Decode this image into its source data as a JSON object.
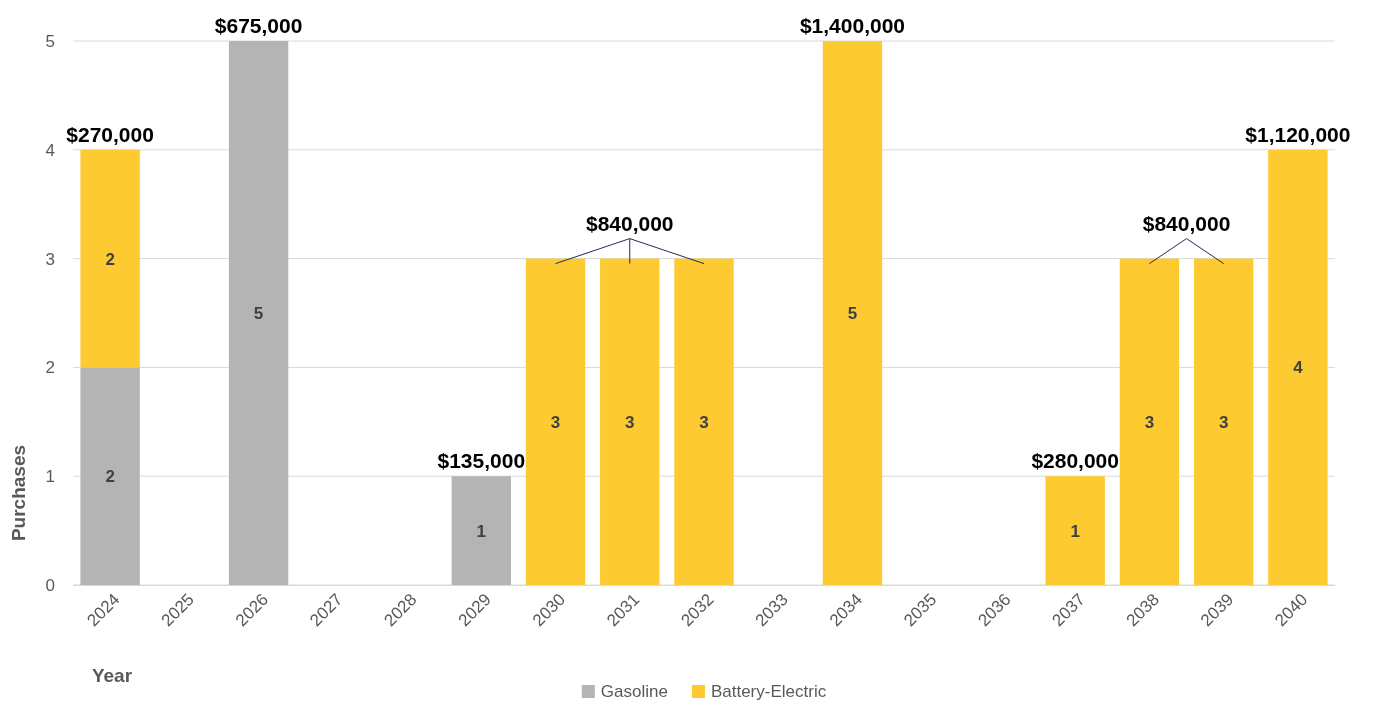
{
  "chart_data": {
    "type": "bar",
    "stacked": true,
    "categories": [
      "2024",
      "2025",
      "2026",
      "2027",
      "2028",
      "2029",
      "2030",
      "2031",
      "2032",
      "2033",
      "2034",
      "2035",
      "2036",
      "2037",
      "2038",
      "2039",
      "2040"
    ],
    "series": [
      {
        "name": "Gasoline",
        "color": "#b4b4b4",
        "values": [
          2,
          null,
          5,
          null,
          null,
          1,
          null,
          null,
          null,
          null,
          null,
          null,
          null,
          null,
          null,
          null,
          null
        ]
      },
      {
        "name": "Battery-Electric",
        "color": "#fdca31",
        "values": [
          2,
          null,
          null,
          null,
          null,
          null,
          3,
          3,
          3,
          null,
          5,
          null,
          null,
          1,
          3,
          3,
          4
        ]
      }
    ],
    "ylim": [
      0,
      5
    ],
    "yticks": [
      0,
      1,
      2,
      3,
      4,
      5
    ],
    "grid": "y",
    "legend": "bottom",
    "data_labels": true,
    "xlabel": "Year",
    "ylabel": "Purchases",
    "annotations": [
      {
        "text": "$270,000",
        "x": "2024",
        "y": 4
      },
      {
        "text": "$675,000",
        "x": "2026",
        "y": 5
      },
      {
        "text": "$135,000",
        "x": "2029",
        "y": 1
      },
      {
        "text": "$840,000",
        "x": "2030",
        "y": 3
      },
      {
        "text": "$1,400,000",
        "x": "2034",
        "y": 5
      },
      {
        "text": "$280,000",
        "x": "2037",
        "y": 1
      },
      {
        "text": "$840,000",
        "x": "2038",
        "y": 3
      },
      {
        "text": "$1,120,000",
        "x": "2040",
        "y": 4
      }
    ]
  }
}
